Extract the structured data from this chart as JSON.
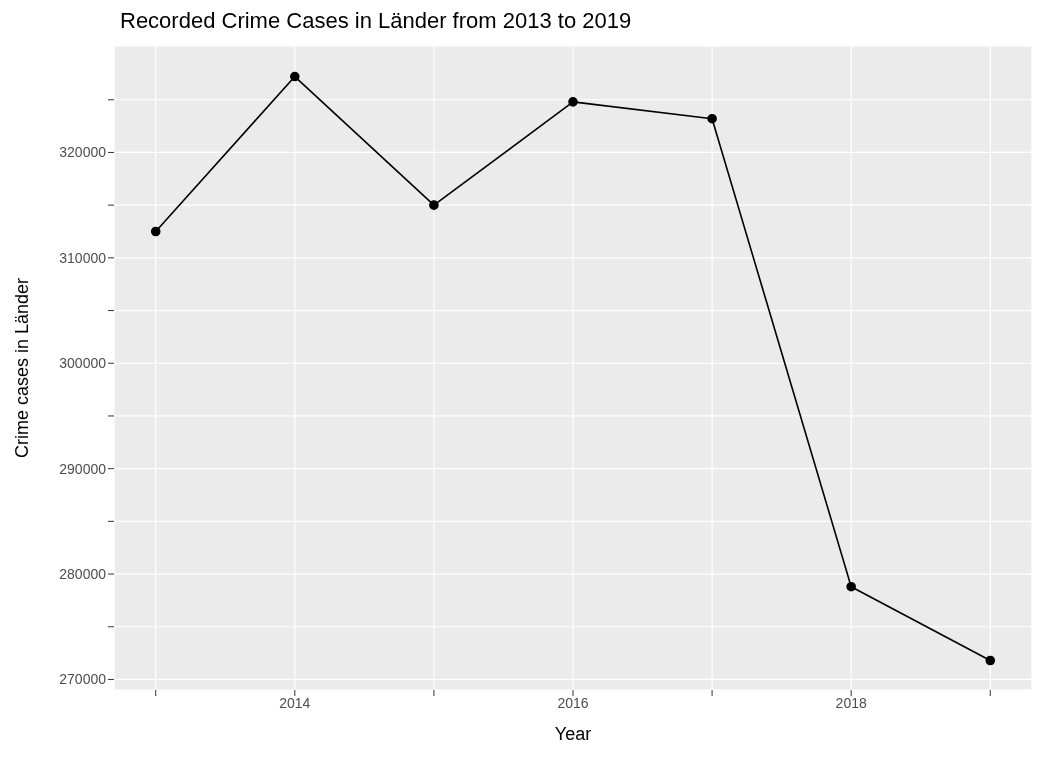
{
  "chart_data": {
    "type": "line",
    "title": "Recorded Crime Cases in Länder from 2013 to 2019",
    "xlabel": "Year",
    "ylabel": "Crime cases in Länder",
    "x": [
      2013,
      2014,
      2015,
      2016,
      2017,
      2018,
      2019
    ],
    "series": [
      {
        "color": "#000000",
        "values": [
          312500,
          327200,
          315000,
          324800,
          323200,
          278800,
          271800
        ]
      }
    ],
    "xlim": [
      2012.7,
      2019.3
    ],
    "xticks": [
      {
        "value": 2013,
        "label": null
      },
      2014,
      {
        "value": 2015,
        "label": null
      },
      2016,
      {
        "value": 2017,
        "label": null
      },
      2018,
      {
        "value": 2019,
        "label": null
      }
    ],
    "ylim": [
      269000,
      330100
    ],
    "yticks": [
      270000,
      {
        "value": 275000,
        "label": null
      },
      280000,
      {
        "value": 285000,
        "label": null
      },
      290000,
      {
        "value": 295000,
        "label": null
      },
      300000,
      {
        "value": 305000,
        "label": null
      },
      310000,
      {
        "value": 315000,
        "label": null
      },
      320000,
      {
        "value": 325000,
        "label": null
      }
    ],
    "grid": true,
    "marker": "circle",
    "line_style": "solid"
  }
}
